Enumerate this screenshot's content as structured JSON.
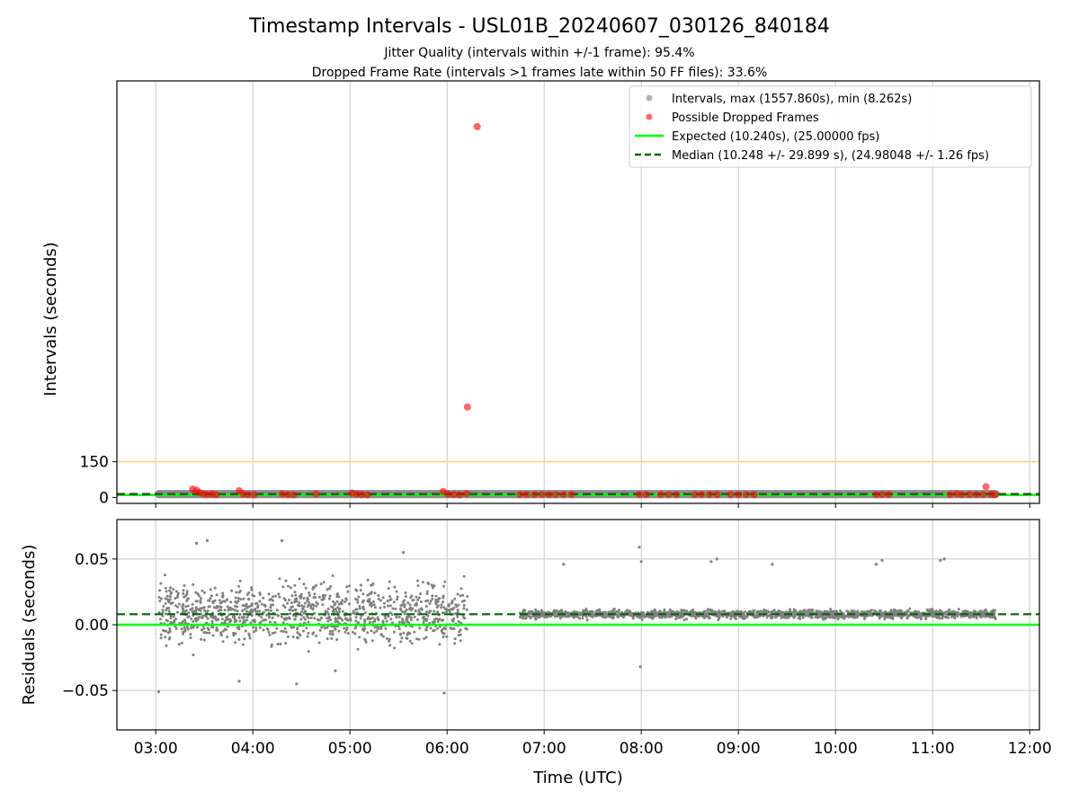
{
  "figure": {
    "title": "Timestamp Intervals - USL01B_20240607_030126_840184",
    "subtitle_1": "Jitter Quality (intervals within +/-1 frame): 95.4%",
    "subtitle_2": "Dropped Frame Rate (intervals >1 frames late within 50 FF files): 33.6%"
  },
  "colors": {
    "intervals": "#808080",
    "dropped": "#ff0000",
    "expected": "#00ff00",
    "median": "#006400",
    "threshold": "#ffd27a",
    "grid": "#c8c8c8"
  },
  "chart_data": [
    {
      "type": "scatter",
      "panel": "intervals",
      "ylabel": "Intervals (seconds)",
      "xlim_hours": [
        2.6,
        12.1
      ],
      "ylim": [
        -25,
        1750
      ],
      "x_tick_hours": [
        3,
        4,
        5,
        6,
        7,
        8,
        9,
        10,
        11,
        12
      ],
      "x_tick_labels": [
        "03:00",
        "04:00",
        "05:00",
        "06:00",
        "07:00",
        "08:00",
        "09:00",
        "10:00",
        "11:00",
        "12:00"
      ],
      "y_ticks": [
        0,
        150
      ],
      "y_tick_labels": [
        "0",
        "150"
      ],
      "grid": "x-only",
      "legend_placement": "top-right",
      "legend": [
        "Intervals, max (1557.860s), min (8.262s)",
        "Possible Dropped Frames",
        "Expected (10.240s), (25.00000 fps)",
        "Median (10.248 +/- 29.899 s), (24.98048 +/- 1.26 fps)"
      ],
      "expected_interval": 10.24,
      "median_interval": 10.248,
      "threshold_line": 150,
      "interval_band": {
        "x_start_hours": 3.03,
        "x_end_hours": 11.65,
        "y_range": [
          8.262,
          20
        ]
      },
      "dropped_frames": {
        "x_hours": [
          3.38,
          3.42,
          3.45,
          3.49,
          3.53,
          3.58,
          3.62,
          3.86,
          3.9,
          3.95,
          4.01,
          4.3,
          4.36,
          4.42,
          4.65,
          5.02,
          5.07,
          5.12,
          5.18,
          5.96,
          6.01,
          6.07,
          6.13,
          6.2,
          6.21,
          6.31,
          6.75,
          6.82,
          6.9,
          6.98,
          7.05,
          7.12,
          7.2,
          7.28,
          7.98,
          8.05,
          8.2,
          8.28,
          8.36,
          8.55,
          8.62,
          8.7,
          8.78,
          8.92,
          9.0,
          9.08,
          9.16,
          10.42,
          10.48,
          10.55,
          11.18,
          11.25,
          11.3,
          11.38,
          11.45,
          11.52,
          11.55,
          11.6,
          11.64
        ],
        "y_seconds": [
          35,
          30,
          20,
          15,
          12,
          14,
          11,
          28,
          15,
          12,
          11,
          14,
          12,
          11,
          14,
          18,
          14,
          12,
          11,
          25,
          14,
          12,
          11,
          16,
          380,
          1557.86,
          12,
          12,
          12,
          12,
          12,
          12,
          12,
          12,
          12,
          12,
          12,
          12,
          12,
          12,
          12,
          12,
          12,
          12,
          12,
          12,
          12,
          12,
          12,
          12,
          12,
          15,
          12,
          12,
          12,
          12,
          45,
          14,
          12
        ]
      }
    },
    {
      "type": "scatter",
      "panel": "residuals",
      "xlabel": "Time (UTC)",
      "ylabel": "Residuals (seconds)",
      "xlim_hours": [
        2.6,
        12.1
      ],
      "ylim": [
        -0.08,
        0.08
      ],
      "x_tick_hours": [
        3,
        4,
        5,
        6,
        7,
        8,
        9,
        10,
        11,
        12
      ],
      "x_tick_labels": [
        "03:00",
        "04:00",
        "05:00",
        "06:00",
        "07:00",
        "08:00",
        "09:00",
        "10:00",
        "11:00",
        "12:00"
      ],
      "y_ticks": [
        0.05,
        0.0,
        -0.05
      ],
      "y_tick_labels": [
        "0.05",
        "0.00",
        "−0.05"
      ],
      "grid": "both",
      "expected_residual": 0.0,
      "median_residual": 0.008,
      "segments": [
        {
          "x_start_hours": 3.03,
          "x_end_hours": 6.21,
          "y_center": 0.008,
          "y_spread": 0.028,
          "approx_count": 1100
        },
        {
          "x_start_hours": 6.75,
          "x_end_hours": 11.65,
          "y_center": 0.008,
          "y_spread": 0.004,
          "approx_count": 1700
        }
      ],
      "outliers": {
        "x_hours": [
          3.03,
          3.42,
          3.53,
          3.86,
          4.3,
          4.45,
          4.85,
          5.55,
          5.97,
          7.2,
          7.98,
          7.99,
          8.0,
          8.72,
          8.78,
          9.35,
          10.42,
          10.48,
          11.08,
          11.12
        ],
        "y_seconds": [
          -0.051,
          0.062,
          0.064,
          -0.043,
          0.064,
          -0.045,
          -0.035,
          0.055,
          -0.052,
          0.046,
          0.059,
          -0.032,
          0.048,
          0.048,
          0.05,
          0.046,
          0.046,
          0.049,
          0.049,
          0.05
        ]
      }
    }
  ]
}
